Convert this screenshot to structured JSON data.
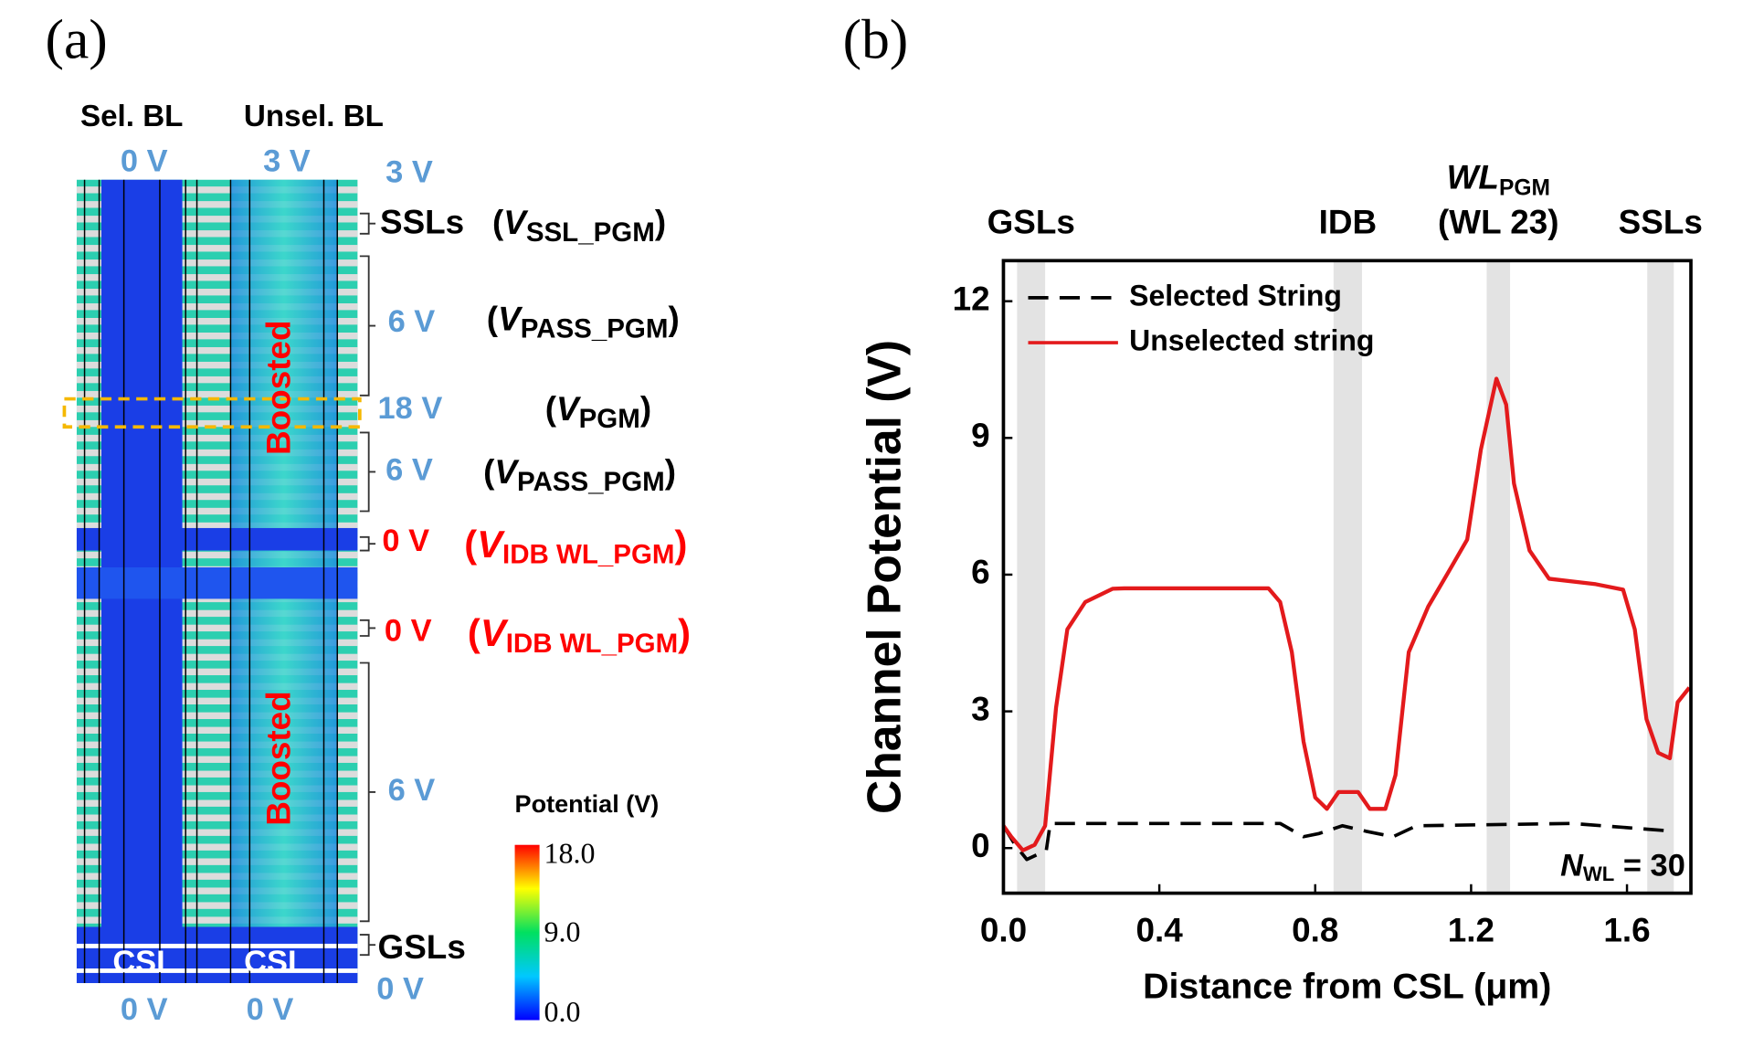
{
  "panel_a": {
    "title": "(a)",
    "columns": [
      {
        "label": "Sel. BL",
        "top_voltage": "0 V",
        "bottom_label": "CSL",
        "bottom_voltage": "0 V"
      },
      {
        "label": "Unsel. BL",
        "top_voltage": "3 V",
        "bottom_label": "CSL",
        "bottom_voltage": "0 V"
      }
    ],
    "boosted": [
      "Boosted",
      "Boosted"
    ],
    "voltages": [
      "3 V",
      "6 V",
      "18 V",
      "6 V",
      "0 V",
      "0 V",
      "6 V",
      "0 V"
    ],
    "lines": [
      "SSLs",
      "GSLs"
    ],
    "formulas": [
      {
        "prefix": "(",
        "symbol": "V",
        "subscript": "SSL_PGM",
        "suffix": ")"
      },
      {
        "prefix": "(",
        "symbol": "V",
        "subscript": "PASS_PGM",
        "suffix": ")"
      },
      {
        "prefix": "(",
        "symbol": "V",
        "subscript": "PGM",
        "suffix": ")"
      },
      {
        "prefix": "(",
        "symbol": "V",
        "subscript": "PASS_PGM",
        "suffix": ")"
      },
      {
        "prefix": "(",
        "symbol": "V",
        "subscript": "IDB WL_PGM",
        "suffix": ")"
      },
      {
        "prefix": "(",
        "symbol": "V",
        "subscript": "IDB WL_PGM",
        "suffix": ")"
      }
    ],
    "colorbar": {
      "title": "Potential (V)",
      "ticks": [
        "18.0",
        "9.0",
        "0.0"
      ]
    }
  },
  "chart_data": {
    "type": "line",
    "panel_label": "(b)",
    "x_label": "Distance from CSL (μm)",
    "y_label": "Channel Potential (V)",
    "xlim": [
      0,
      1.764
    ],
    "ylim": [
      -0.99,
      12.89
    ],
    "xticks": [
      {
        "value": 0,
        "label": "0.0"
      },
      0.4,
      0.8,
      1.2,
      1.6
    ],
    "yticks": [
      0,
      3,
      6,
      9,
      12
    ],
    "legend": "upper left",
    "regions": [
      {
        "label": "GSLs",
        "xrange": [
          0.035,
          0.107
        ]
      },
      {
        "label": "IDB",
        "xrange": [
          0.847,
          0.92
        ]
      },
      {
        "label": "WL",
        "label_sub": "PGM",
        "label_line2": "(WL 23)",
        "xrange": [
          1.24,
          1.3
        ]
      },
      {
        "label": "SSLs",
        "xrange": [
          1.652,
          1.72
        ]
      }
    ],
    "annotation": {
      "symbol": "N",
      "subscript": "WL",
      "suffix": " = 30"
    },
    "series": [
      {
        "name": "Selected String",
        "color": "#000000",
        "dashed": true,
        "x": [
          0,
          0.03,
          0.06,
          0.11,
          0.12,
          0.71,
          0.77,
          0.81,
          0.87,
          0.93,
          1.0,
          1.06,
          1.46,
          1.72
        ],
        "values": [
          0.49,
          0.07,
          -0.25,
          -0.05,
          0.54,
          0.54,
          0.25,
          0.32,
          0.49,
          0.37,
          0.25,
          0.49,
          0.54,
          0.37
        ]
      },
      {
        "name": "Unselected string",
        "color": "#e31a1c",
        "dashed": false,
        "x": [
          0,
          0.02,
          0.05,
          0.08,
          0.107,
          0.135,
          0.164,
          0.21,
          0.28,
          0.31,
          0.68,
          0.71,
          0.74,
          0.77,
          0.8,
          0.83,
          0.86,
          0.91,
          0.94,
          0.98,
          1.006,
          1.04,
          1.09,
          1.14,
          1.19,
          1.225,
          1.265,
          1.29,
          1.31,
          1.35,
          1.4,
          1.52,
          1.59,
          1.62,
          1.65,
          1.68,
          1.71,
          1.73,
          1.76
        ],
        "values": [
          0.49,
          0.25,
          -0.05,
          0.07,
          0.49,
          3.08,
          4.8,
          5.4,
          5.69,
          5.7,
          5.7,
          5.4,
          4.3,
          2.34,
          1.11,
          0.86,
          1.23,
          1.23,
          0.86,
          0.86,
          1.6,
          4.3,
          5.3,
          6.03,
          6.77,
          8.74,
          10.3,
          9.73,
          8.0,
          6.53,
          5.91,
          5.79,
          5.67,
          4.8,
          2.83,
          2.09,
          1.97,
          3.2,
          3.52
        ]
      }
    ]
  }
}
